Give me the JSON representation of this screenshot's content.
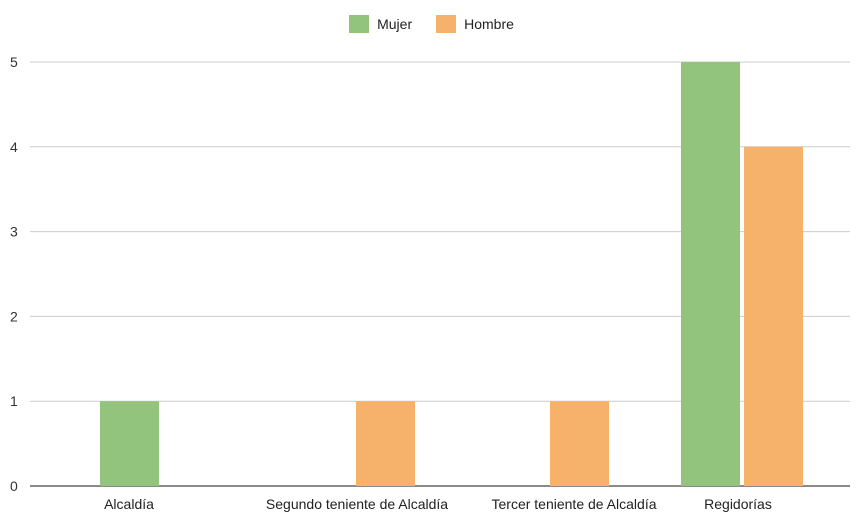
{
  "chart_data": {
    "type": "bar",
    "categories": [
      "Alcaldía",
      "Segundo teniente de Alcaldía",
      "Tercer teniente de Alcaldía",
      "Regidorías"
    ],
    "series": [
      {
        "name": "Mujer",
        "values": [
          1,
          0,
          0,
          5
        ],
        "color": "#93c47d"
      },
      {
        "name": "Hombre",
        "values": [
          0,
          1,
          1,
          4
        ],
        "color": "#f6b26b"
      }
    ],
    "ylim": [
      0,
      5
    ],
    "yticks": [
      0,
      1,
      2,
      3,
      4,
      5
    ],
    "grid": true,
    "legend_position": "top"
  }
}
